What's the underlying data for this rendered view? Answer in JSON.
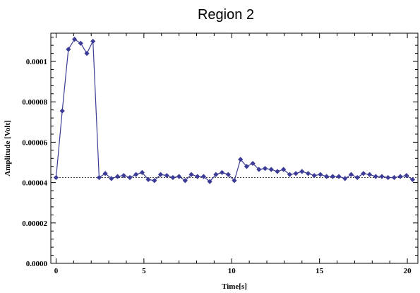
{
  "chart_data": {
    "type": "line",
    "title": "Region 2",
    "xlabel": "Time[s]",
    "ylabel": "Amplitude [Volt]",
    "xlim": [
      -0.3,
      20.6
    ],
    "ylim": [
      0,
      0.000114
    ],
    "x_ticks": [
      0,
      5,
      10,
      15,
      20
    ],
    "x_tick_labels": [
      "0",
      "5",
      "10",
      "15",
      "20"
    ],
    "y_ticks": [
      0,
      2e-05,
      4e-05,
      6e-05,
      8e-05,
      0.0001
    ],
    "y_tick_labels": [
      "0.0000",
      "0.00002",
      "0.00004",
      "0.00006",
      "0.00008",
      "0.0001"
    ],
    "reference_line": {
      "y": 4.25e-05,
      "style": "dotted"
    },
    "series": [
      {
        "color": "#3c3c96",
        "marker": "diamond",
        "x": [
          0,
          0.35,
          0.7,
          1.05,
          1.4,
          1.75,
          2.1,
          2.45,
          2.8,
          3.15,
          3.5,
          3.85,
          4.2,
          4.55,
          4.9,
          5.25,
          5.6,
          5.95,
          6.3,
          6.65,
          7.0,
          7.35,
          7.7,
          8.05,
          8.4,
          8.75,
          9.1,
          9.45,
          9.8,
          10.15,
          10.5,
          10.85,
          11.2,
          11.55,
          11.9,
          12.25,
          12.6,
          12.95,
          13.3,
          13.65,
          14.0,
          14.35,
          14.7,
          15.05,
          15.4,
          15.75,
          16.1,
          16.45,
          16.8,
          17.15,
          17.5,
          17.85,
          18.2,
          18.55,
          18.9,
          19.25,
          19.6,
          19.95,
          20.3
        ],
        "y": [
          4.25e-05,
          7.55e-05,
          0.000106,
          0.000111,
          0.000109,
          0.000104,
          0.00011,
          4.25e-05,
          4.45e-05,
          4.2e-05,
          4.3e-05,
          4.35e-05,
          4.25e-05,
          4.4e-05,
          4.5e-05,
          4.15e-05,
          4.1e-05,
          4.4e-05,
          4.35e-05,
          4.25e-05,
          4.3e-05,
          4.1e-05,
          4.4e-05,
          4.3e-05,
          4.3e-05,
          4.05e-05,
          4.4e-05,
          4.5e-05,
          4.4e-05,
          4.1e-05,
          5.15e-05,
          4.8e-05,
          4.95e-05,
          4.65e-05,
          4.7e-05,
          4.65e-05,
          4.55e-05,
          4.65e-05,
          4.4e-05,
          4.45e-05,
          4.55e-05,
          4.45e-05,
          4.35e-05,
          4.4e-05,
          4.3e-05,
          4.3e-05,
          4.3e-05,
          4.2e-05,
          4.4e-05,
          4.25e-05,
          4.45e-05,
          4.4e-05,
          4.3e-05,
          4.3e-05,
          4.25e-05,
          4.25e-05,
          4.3e-05,
          4.35e-05,
          4.15e-05
        ]
      }
    ]
  }
}
